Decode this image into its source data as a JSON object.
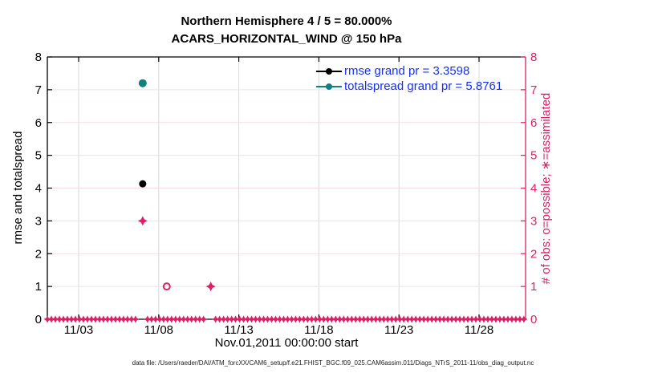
{
  "figure": {
    "title_line1": "Northern Hemisphere 4 / 5 = 80.000%",
    "title_line2": "ACARS_HORIZONTAL_WIND @ 150 hPa",
    "footer": "data file: /Users/raeder/DAI/ATM_forcXX/CAM6_setup/f.e21.FHIST_BGC.f09_025.CAM6assim.011/Diags_NTrS_2011-11/obs_diag_output.nc"
  },
  "colors": {
    "magenta": "#DB2065",
    "teal": "#108080",
    "black": "#000000",
    "legend_text_blue": "#1530F5",
    "grid_pink": "#F9DBE7",
    "grid_gray": "#D9D9D9"
  },
  "chart_data": {
    "type": "scatter",
    "title": "Northern Hemisphere 4 / 5 = 80.000%",
    "subtitle": "ACARS_HORIZONTAL_WIND @ 150 hPa",
    "xlabel": "Nov.01,2011 00:00:00 start",
    "ylabel_left": "rmse and totalspread",
    "ylabel_right": "# of obs: o=possible; ∗=assimilated",
    "grid": true,
    "ylim": [
      0,
      8
    ],
    "y_ticks": [
      0,
      1,
      2,
      3,
      4,
      5,
      6,
      7,
      8
    ],
    "x_tick_labels": [
      "11/03",
      "11/08",
      "11/13",
      "11/18",
      "11/23",
      "11/28"
    ],
    "x_tick_days": [
      3,
      8,
      13,
      18,
      23,
      28
    ],
    "x_range_days": [
      1.05,
      30.9
    ],
    "series": [
      {
        "name": "rmse",
        "marker": "filled-circle",
        "color": "#000000",
        "size": 4.5,
        "points": [
          {
            "day": 7.0,
            "value": 4.13
          }
        ]
      },
      {
        "name": "totalspread",
        "marker": "filled-circle",
        "color": "#108080",
        "size": 5,
        "points": [
          {
            "day": 7.0,
            "value": 7.2
          }
        ]
      },
      {
        "name": "obs-possible-only",
        "marker": "open-circle",
        "color": "#DB2065",
        "size": 4,
        "points": [
          {
            "day": 8.5,
            "value": 1
          }
        ]
      },
      {
        "name": "obs-possible-and-assimilated",
        "marker": "star",
        "color": "#DB2065",
        "size": 6,
        "points": [
          {
            "day": 7.0,
            "value": 3
          },
          {
            "day": 11.25,
            "value": 1
          }
        ]
      }
    ],
    "zero_band": {
      "note": "dense overlapping o and * obs markers at y=0 every 6 hours",
      "start_day": 1.05,
      "end_day": 30.85,
      "step_days": 0.25,
      "gap_day_ranges": [
        [
          6.7,
          7.25
        ],
        [
          10.95,
          11.45
        ]
      ],
      "color": "#DB2065",
      "size": 4.6
    },
    "legend": [
      {
        "label": "rmse grand pr = 3.3598",
        "color": "#000000"
      },
      {
        "label": "totalspread grand pr = 5.8761",
        "color": "#108080"
      }
    ],
    "legend_position": "upper-right-inside",
    "legend_text_color": "#1530F5"
  }
}
